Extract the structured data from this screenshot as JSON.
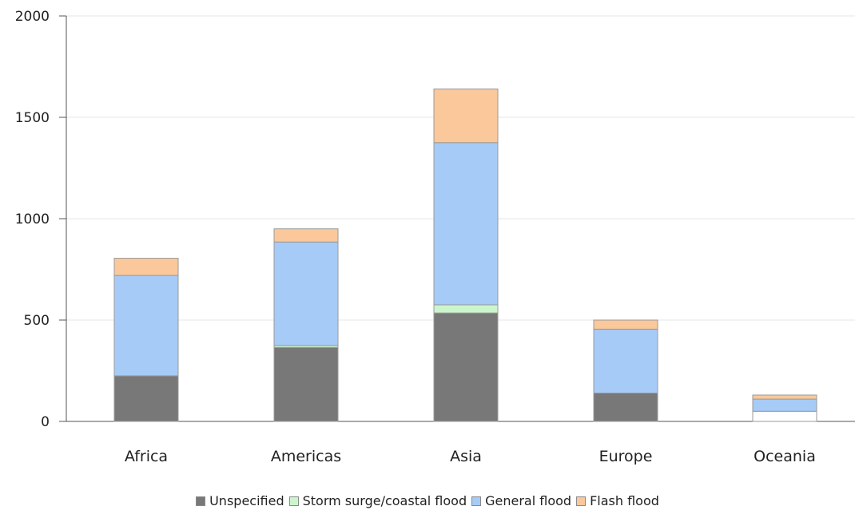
{
  "chart_data": {
    "type": "bar",
    "stacked": true,
    "title": "",
    "xlabel": "",
    "ylabel": "",
    "categories": [
      "Africa",
      "Americas",
      "Asia",
      "Europe",
      "Oceania"
    ],
    "ylim": [
      0,
      2000
    ],
    "yticks": [
      0,
      500,
      1000,
      1500,
      2000
    ],
    "grid": true,
    "legend_position": "bottom",
    "series": [
      {
        "name": "Unspecified",
        "color": "#787878",
        "values": [
          225,
          365,
          535,
          140,
          50
        ]
      },
      {
        "name": "Storm surge/coastal flood",
        "color": "#ccf5cc",
        "values": [
          0,
          10,
          40,
          0,
          0
        ]
      },
      {
        "name": "General flood",
        "color": "#a6cbf7",
        "values": [
          495,
          510,
          800,
          315,
          60
        ]
      },
      {
        "name": "Flash flood",
        "color": "#fac89a",
        "values": [
          85,
          65,
          265,
          45,
          20
        ]
      }
    ]
  }
}
